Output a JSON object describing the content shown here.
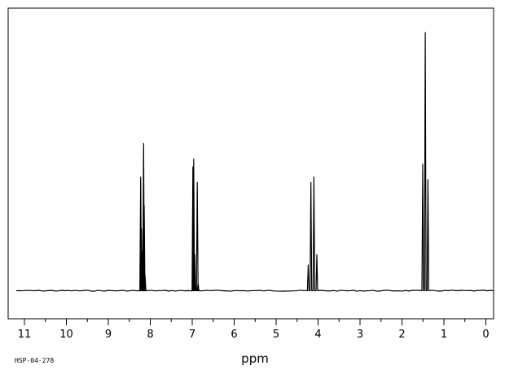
{
  "chart_data": {
    "type": "line",
    "title": "",
    "xlabel": "ppm",
    "ylabel": "",
    "xlim": [
      11.0,
      0.0
    ],
    "x_reversed": true,
    "ylim": [
      0,
      1
    ],
    "grid": false,
    "major_ticks": [
      11,
      10,
      9,
      8,
      7,
      6,
      5,
      4,
      3,
      2,
      1,
      0
    ],
    "tick_labels": [
      "11",
      "10",
      "9",
      "8",
      "7",
      "6",
      "5",
      "4",
      "3",
      "2",
      "1",
      "0"
    ],
    "minor_tick_step": 0.5,
    "baseline": 0.0,
    "peaks": [
      {
        "ppm": 8.255,
        "height": 0.0
      },
      {
        "ppm": 8.23,
        "height": 0.44
      },
      {
        "ppm": 8.21,
        "height": 0.24
      },
      {
        "ppm": 8.185,
        "height": 0.15
      },
      {
        "ppm": 8.16,
        "height": 0.57
      },
      {
        "ppm": 8.145,
        "height": 0.33
      },
      {
        "ppm": 8.125,
        "height": 0.06
      },
      {
        "ppm": 6.985,
        "height": 0.48
      },
      {
        "ppm": 6.965,
        "height": 0.51
      },
      {
        "ppm": 6.94,
        "height": 0.14
      },
      {
        "ppm": 6.88,
        "height": 0.42
      },
      {
        "ppm": 6.86,
        "height": 0.03
      },
      {
        "ppm": 4.235,
        "height": 0.1
      },
      {
        "ppm": 4.17,
        "height": 0.42
      },
      {
        "ppm": 4.1,
        "height": 0.44
      },
      {
        "ppm": 4.03,
        "height": 0.14
      },
      {
        "ppm": 1.505,
        "height": 0.49
      },
      {
        "ppm": 1.445,
        "height": 1.0
      },
      {
        "ppm": 1.38,
        "height": 0.43
      }
    ]
  },
  "footer": {
    "code_label": "HSP-04-278"
  }
}
